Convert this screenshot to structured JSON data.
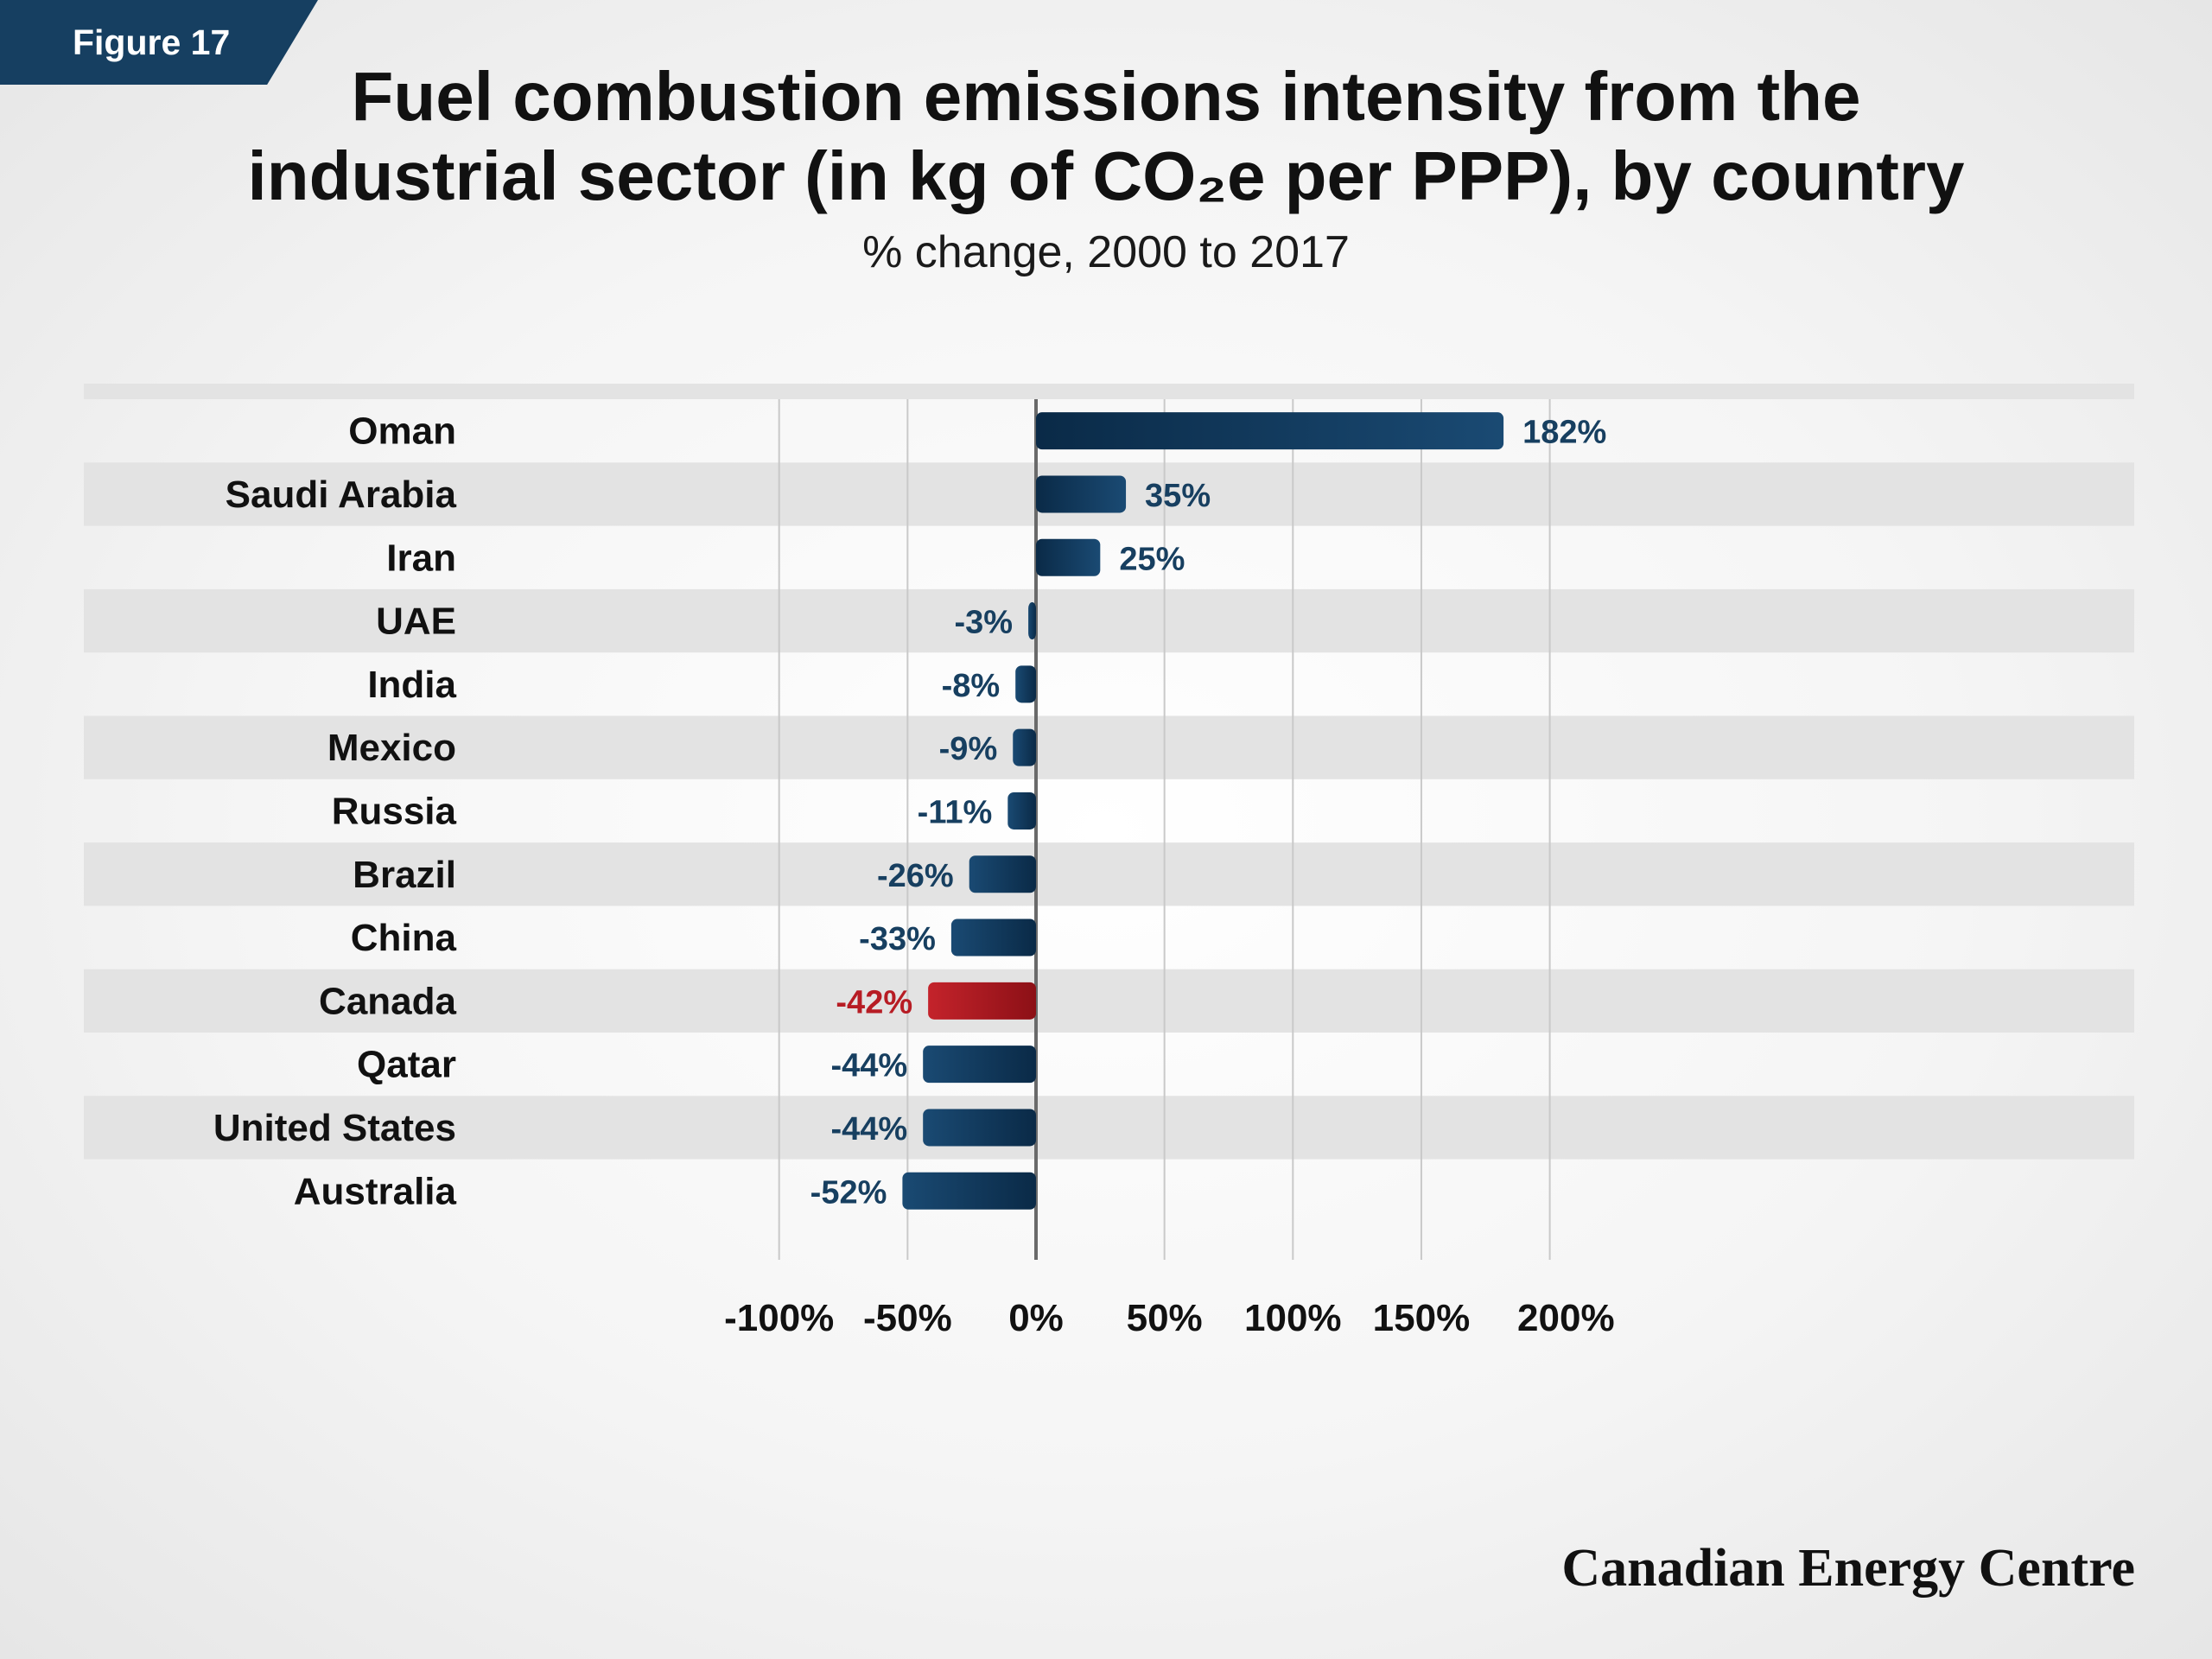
{
  "badge": {
    "label": "Figure 17"
  },
  "header": {
    "title_line1": "Fuel combustion emissions intensity from the",
    "title_line2": "industrial sector (in kg of CO₂e per PPP), by country",
    "subtitle": "% change, 2000 to 2017"
  },
  "footer": {
    "brand": "Canadian Energy Centre"
  },
  "colors": {
    "bar": "#1a4a73",
    "bar_dark": "#0a2a47",
    "highlight": "#c4232b",
    "highlight_dark": "#8c1016",
    "value_text": "#173f60",
    "highlight_text": "#b71c24",
    "badge": "#163f61",
    "band": "#e3e3e3"
  },
  "chart_data": {
    "type": "bar",
    "orientation": "horizontal",
    "title": "Fuel combustion emissions intensity from the industrial sector (in kg of CO₂e per PPP), by country",
    "subtitle": "% change, 2000 to 2017",
    "categories": [
      "Oman",
      "Saudi Arabia",
      "Iran",
      "UAE",
      "India",
      "Mexico",
      "Russia",
      "Brazil",
      "China",
      "Canada",
      "Qatar",
      "United States",
      "Australia"
    ],
    "values": [
      182,
      35,
      25,
      -3,
      -8,
      -9,
      -11,
      -26,
      -33,
      -42,
      -44,
      -44,
      -52
    ],
    "value_labels": [
      "182%",
      "35%",
      "25%",
      "-3%",
      "-8%",
      "-9%",
      "-11%",
      "-26%",
      "-33%",
      "-42%",
      "-44%",
      "-44%",
      "-52%"
    ],
    "highlight": "Canada",
    "xlim": [
      -100,
      200
    ],
    "xticks": [
      -100,
      -50,
      0,
      50,
      100,
      150,
      200
    ],
    "xtick_labels": [
      "-100%",
      "-50%",
      "0%",
      "50%",
      "100%",
      "150%",
      "200%"
    ],
    "grid": true,
    "legend": "none"
  }
}
